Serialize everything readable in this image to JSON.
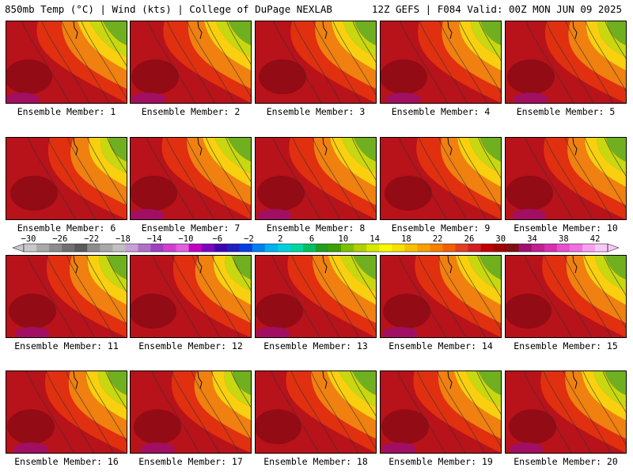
{
  "header": {
    "left_title": "850mb Temp (°C) | Wind (kts) | College of DuPage NEXLAB",
    "right_title": "12Z GEFS | F084 Valid: 00Z MON JUN 09 2025"
  },
  "members": [
    "Ensemble Member: 1",
    "Ensemble Member: 2",
    "Ensemble Member: 3",
    "Ensemble Member: 4",
    "Ensemble Member: 5",
    "Ensemble Member: 6",
    "Ensemble Member: 7",
    "Ensemble Member: 8",
    "Ensemble Member: 9",
    "Ensemble Member: 10",
    "Ensemble Member: 11",
    "Ensemble Member: 12",
    "Ensemble Member: 13",
    "Ensemble Member: 14",
    "Ensemble Member: 15",
    "Ensemble Member: 16",
    "Ensemble Member: 17",
    "Ensemble Member: 18",
    "Ensemble Member: 19",
    "Ensemble Member: 20"
  ],
  "colorbar": {
    "labels": [
      "−30",
      "−26",
      "−22",
      "−18",
      "−14",
      "−10",
      "−6",
      "−2",
      "2",
      "6",
      "10",
      "14",
      "18",
      "22",
      "26",
      "30",
      "34",
      "38",
      "42"
    ],
    "colors": [
      "#c8c8c8",
      "#a8a8a8",
      "#8c8c8c",
      "#707070",
      "#5a5a5a",
      "#8c8c8c",
      "#a8a8a8",
      "#c0c0c0",
      "#c8a0d8",
      "#b070c8",
      "#a040c0",
      "#d040d0",
      "#e060e0",
      "#c000c0",
      "#8000c0",
      "#4000b0",
      "#2020c0",
      "#0040e0",
      "#0080f0",
      "#00b0f0",
      "#00d0e0",
      "#00d8a0",
      "#00c060",
      "#20a020",
      "#40a000",
      "#80c000",
      "#b0d000",
      "#d8e800",
      "#f8f800",
      "#f8e000",
      "#f8c000",
      "#f8a000",
      "#f88000",
      "#f06000",
      "#e04020",
      "#d02020",
      "#c00000",
      "#a00000",
      "#801010",
      "#a01070",
      "#c02090",
      "#d830b0",
      "#e850d0",
      "#f070e0",
      "#f8a0f0",
      "#f8c8f8"
    ]
  }
}
